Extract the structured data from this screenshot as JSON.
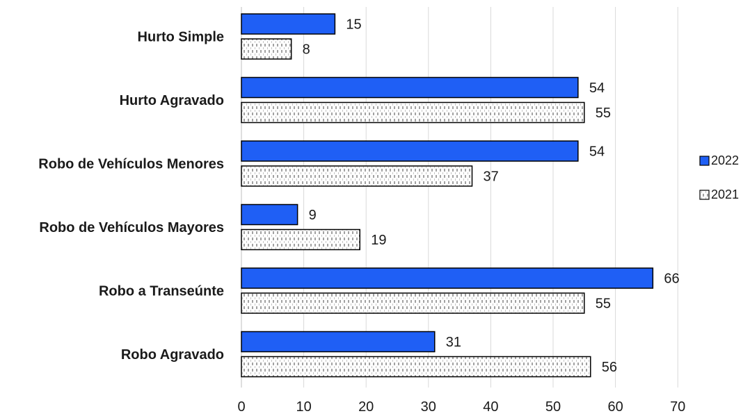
{
  "chart_data": {
    "type": "bar",
    "orientation": "horizontal",
    "categories": [
      "Hurto Simple",
      "Hurto Agravado",
      "Robo de Vehículos Menores",
      "Robo de Vehículos Mayores",
      "Robo a Transeúnte",
      "Robo Agravado"
    ],
    "series": [
      {
        "name": "2022",
        "values": [
          15,
          54,
          54,
          9,
          66,
          31
        ],
        "color": "#1f5ff5",
        "pattern": "solid"
      },
      {
        "name": "2021",
        "values": [
          8,
          55,
          37,
          19,
          55,
          56
        ],
        "color": "#ffffff",
        "pattern": "dotted-dash"
      }
    ],
    "xlim": [
      0,
      70
    ],
    "xticks": [
      0,
      10,
      20,
      30,
      40,
      50,
      60,
      70
    ],
    "grid": true,
    "data_labels": true,
    "legend_position": "right",
    "title": "",
    "xlabel": "",
    "ylabel": ""
  }
}
